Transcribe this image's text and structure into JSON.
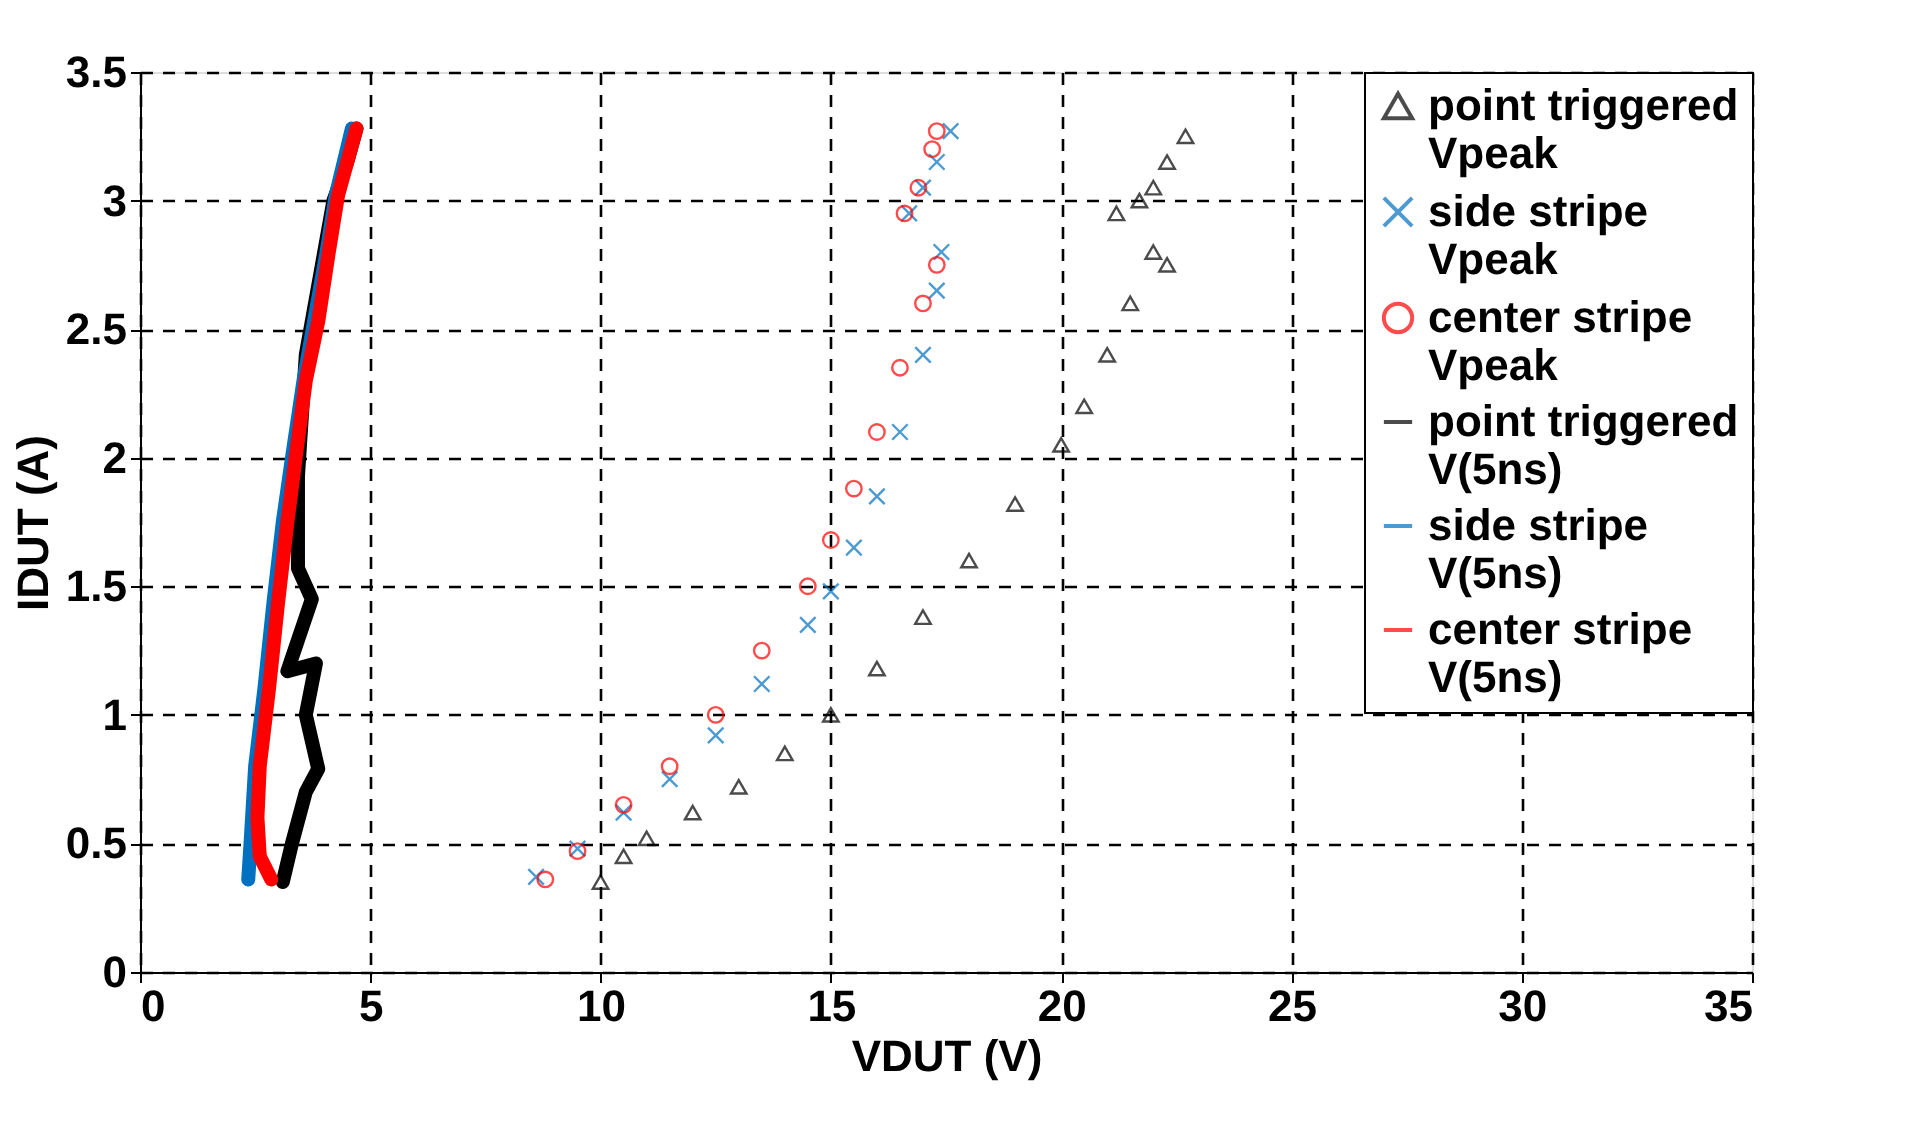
{
  "chart_data": {
    "type": "scatter",
    "xlabel": "VDUT (V)",
    "ylabel": "IDUT (A)",
    "xlim": [
      0,
      35
    ],
    "ylim": [
      0,
      3.5
    ],
    "xticks": [
      0,
      5,
      10,
      15,
      20,
      25,
      30,
      35
    ],
    "yticks": [
      0,
      0.5,
      1,
      1.5,
      2,
      2.5,
      3,
      3.5
    ],
    "grid": true,
    "legend": "top right",
    "series": [
      {
        "name": "point triggered Vpeak",
        "marker": "triangle",
        "color": "#000000",
        "x": [
          10,
          10.5,
          11,
          12,
          13,
          14,
          15,
          16,
          17,
          18,
          19,
          20,
          20.5,
          21,
          21.5,
          22,
          22.3,
          21.2,
          21.7,
          22,
          22.3,
          22.7
        ],
        "values": [
          0.35,
          0.45,
          0.52,
          0.62,
          0.72,
          0.85,
          1.0,
          1.18,
          1.38,
          1.6,
          1.82,
          2.05,
          2.2,
          2.4,
          2.6,
          2.8,
          2.75,
          2.95,
          3.0,
          3.05,
          3.15,
          3.25
        ]
      },
      {
        "name": "side stripe Vpeak",
        "marker": "cross",
        "color": "#0070c0",
        "x": [
          8.6,
          9.5,
          10.5,
          11.5,
          12.5,
          13.5,
          14.5,
          15,
          15.5,
          16,
          16.5,
          17,
          17.3,
          17.4,
          16.7,
          17,
          17.3,
          17.6
        ],
        "values": [
          0.37,
          0.48,
          0.62,
          0.75,
          0.92,
          1.12,
          1.35,
          1.48,
          1.65,
          1.85,
          2.1,
          2.4,
          2.65,
          2.8,
          2.95,
          3.05,
          3.15,
          3.27
        ]
      },
      {
        "name": "center stripe Vpeak",
        "marker": "circle",
        "color": "#ff0000",
        "x": [
          8.8,
          9.5,
          10.5,
          11.5,
          12.5,
          13.5,
          14.5,
          15,
          15.5,
          16,
          16.5,
          17,
          17.3,
          16.6,
          16.9,
          17.2,
          17.3
        ],
        "values": [
          0.36,
          0.47,
          0.65,
          0.8,
          1.0,
          1.25,
          1.5,
          1.68,
          1.88,
          2.1,
          2.35,
          2.6,
          2.75,
          2.95,
          3.05,
          3.2,
          3.27
        ]
      },
      {
        "name": "point triggered V(5ns)",
        "type": "line",
        "marker": "none",
        "color": "#000000",
        "x": [
          3.1,
          3.3,
          3.6,
          3.87,
          3.6,
          3.82,
          3.2,
          3.73,
          3.43,
          3.43,
          3.6,
          3.9,
          4.2,
          4.5,
          4.7
        ],
        "values": [
          0.35,
          0.5,
          0.7,
          0.79,
          1.0,
          1.2,
          1.17,
          1.45,
          1.57,
          1.93,
          2.4,
          2.7,
          3.0,
          3.15,
          3.28
        ]
      },
      {
        "name": "side stripe V(5ns)",
        "type": "line",
        "marker": "none",
        "color": "#0070c0",
        "x": [
          2.35,
          2.4,
          2.5,
          2.7,
          2.9,
          3.1,
          3.3,
          3.55,
          3.8,
          4.05,
          4.25,
          4.6
        ],
        "values": [
          0.36,
          0.5,
          0.8,
          1.1,
          1.44,
          1.75,
          2.0,
          2.3,
          2.55,
          2.8,
          3.02,
          3.28
        ]
      },
      {
        "name": "center stripe V(5ns)",
        "type": "line",
        "marker": "none",
        "color": "#ff0000",
        "x": [
          2.85,
          2.6,
          2.55,
          2.6,
          2.8,
          3.0,
          3.2,
          3.38,
          3.6,
          3.87,
          4.1,
          4.3,
          4.7
        ],
        "values": [
          0.36,
          0.45,
          0.6,
          0.8,
          1.1,
          1.44,
          1.75,
          2.0,
          2.3,
          2.53,
          2.8,
          3.02,
          3.28
        ]
      }
    ]
  }
}
